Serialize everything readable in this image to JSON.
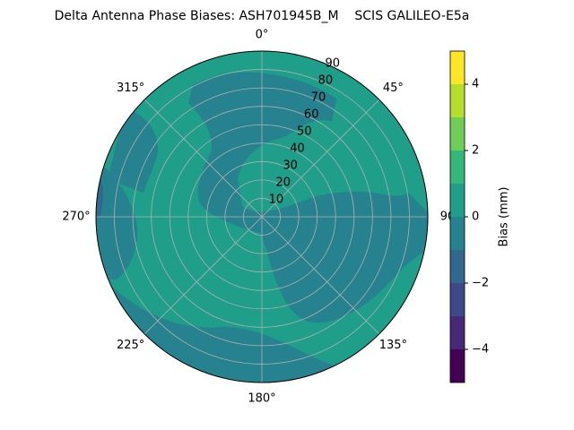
{
  "chart_data": {
    "type": "polar-contour",
    "title": "Delta Antenna Phase Biases: ASH701945B_M    SCIS GALILEO-E5a",
    "thetaticks": [
      {
        "value": 0,
        "label": "0°"
      },
      {
        "value": 45,
        "label": "45°"
      },
      90,
      {
        "value": 135,
        "label": "135°"
      },
      {
        "value": 180,
        "label": "180°"
      },
      {
        "value": 225,
        "label": "225°"
      },
      {
        "value": 270,
        "label": "270°"
      },
      {
        "value": 315,
        "label": "315°"
      }
    ],
    "rlim": [
      0,
      90
    ],
    "rticks": [
      10,
      20,
      30,
      40,
      50,
      60,
      70,
      80,
      90
    ],
    "levels": [
      -5,
      -4,
      -3,
      -2,
      -1,
      0,
      1,
      2,
      3,
      4,
      5
    ],
    "colors": [
      "#440154",
      "#482878",
      "#3e4989",
      "#31688e",
      "#26828e",
      "#1f9e89",
      "#35b779",
      "#6ece58",
      "#b5de2b",
      "#fde725"
    ],
    "colorbar_label": "Bias (mm)",
    "colorbar_ticks": [
      {
        "value": -4,
        "label": "−4"
      },
      {
        "value": -2,
        "label": "−2"
      },
      0,
      2,
      4
    ],
    "grid": true
  }
}
